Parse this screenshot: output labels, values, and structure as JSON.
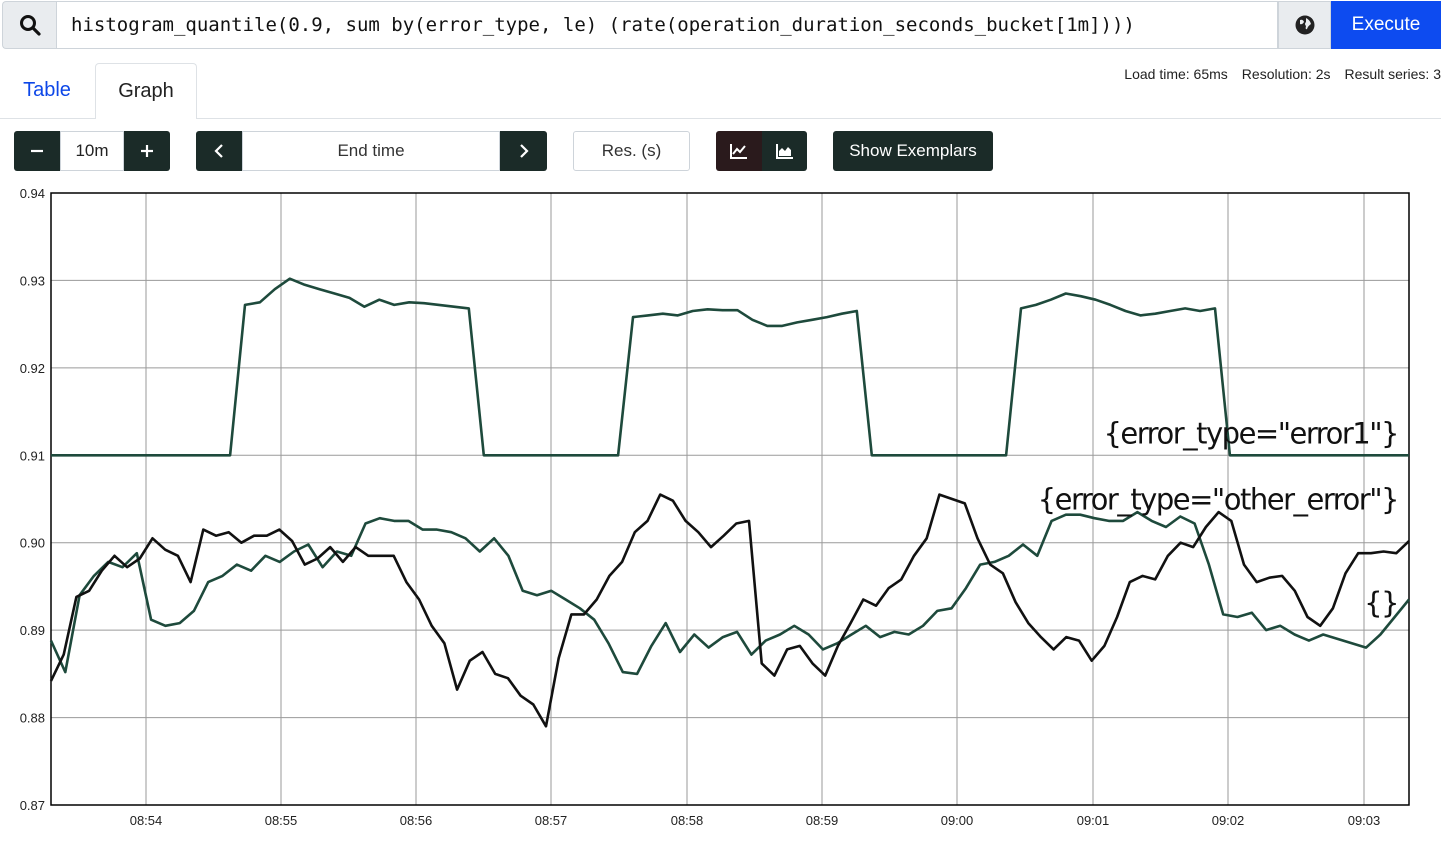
{
  "query": {
    "expression": "histogram_quantile(0.9, sum by(error_type, le) (rate(operation_duration_seconds_bucket[1m])))",
    "execute_label": "Execute"
  },
  "tabs": [
    {
      "label": "Table",
      "active": false
    },
    {
      "label": "Graph",
      "active": true
    }
  ],
  "stats": {
    "load_time": "Load time: 65ms",
    "resolution": "Resolution: 2s",
    "result_series": "Result series: 3"
  },
  "controls": {
    "range_value": "10m",
    "end_time_placeholder": "End time",
    "resolution_placeholder": "Res. (s)",
    "exemplars_label": "Show Exemplars"
  },
  "colors": {
    "accent": "#0d4bf0",
    "dark_button": "#1b2b28",
    "series_dark": "#111111",
    "series_green": "#1e4a3c"
  },
  "chart_data": {
    "type": "line",
    "ylim": [
      0.87,
      0.94
    ],
    "y_ticks": [
      "0.94",
      "0.93",
      "0.92",
      "0.91",
      "0.90",
      "0.89",
      "0.88",
      "0.87"
    ],
    "x_ticks": [
      "08:54",
      "08:55",
      "08:56",
      "08:57",
      "08:58",
      "08:59",
      "09:00",
      "09:01",
      "09:02",
      "09:03"
    ],
    "grid": true,
    "series": [
      {
        "name": "{error_type=\"error1\"}",
        "color": "#1e4a3c",
        "values": [
          [
            0.91,
            0.91
          ],
          [
            0.91,
            0.91
          ],
          [
            0.91,
            0.91
          ],
          [
            0.91,
            0.91
          ],
          [
            0.91,
            0.91
          ],
          [
            0.91,
            0.91
          ],
          [
            0.91,
            0.9272
          ],
          [
            0.9275,
            0.929
          ],
          [
            0.9302,
            0.9295
          ],
          [
            0.929,
            0.9285
          ],
          [
            0.928,
            0.927
          ],
          [
            0.9278,
            0.9272
          ],
          [
            0.9275,
            0.9274
          ],
          [
            0.9272,
            0.927
          ],
          [
            0.9268,
            0.91
          ],
          [
            0.91,
            0.91
          ],
          [
            0.91,
            0.91
          ],
          [
            0.91,
            0.91
          ],
          [
            0.91,
            0.91
          ],
          [
            0.91,
            0.9258
          ],
          [
            0.926,
            0.9262
          ],
          [
            0.926,
            0.9265
          ],
          [
            0.9267,
            0.9266
          ],
          [
            0.9266,
            0.9255
          ],
          [
            0.9248,
            0.9248
          ],
          [
            0.9252,
            0.9255
          ],
          [
            0.9258,
            0.9262
          ],
          [
            0.9265,
            0.91
          ],
          [
            0.91,
            0.91
          ],
          [
            0.91,
            0.91
          ],
          [
            0.91,
            0.91
          ],
          [
            0.91,
            0.91
          ],
          [
            0.91,
            0.9268
          ],
          [
            0.9272,
            0.9278
          ],
          [
            0.9285,
            0.9282
          ],
          [
            0.9278,
            0.9272
          ],
          [
            0.9265,
            0.926
          ],
          [
            0.9262,
            0.9265
          ],
          [
            0.9268,
            0.9265
          ],
          [
            0.9268,
            0.91
          ],
          [
            0.91,
            0.91
          ],
          [
            0.91,
            0.91
          ],
          [
            0.91,
            0.91
          ],
          [
            0.91,
            0.91
          ],
          [
            0.91,
            0.91
          ],
          [
            0.91,
            0.91
          ]
        ]
      },
      {
        "name": "{error_type=\"other_error\"}",
        "color": "#1e4a3c",
        "values": [
          [
            0.8888,
            0.8852
          ],
          [
            0.894,
            0.8962
          ],
          [
            0.8978,
            0.8972
          ],
          [
            0.8988,
            0.8912
          ],
          [
            0.8905,
            0.8908
          ],
          [
            0.8922,
            0.8955
          ],
          [
            0.8962,
            0.8975
          ],
          [
            0.8968,
            0.8985
          ],
          [
            0.8978,
            0.899
          ],
          [
            0.8998,
            0.8972
          ],
          [
            0.899,
            0.8985
          ],
          [
            0.9022,
            0.9028
          ],
          [
            0.9025,
            0.9025
          ],
          [
            0.9015,
            0.9015
          ],
          [
            0.9012,
            0.9005
          ],
          [
            0.899,
            0.9005
          ],
          [
            0.8985,
            0.8945
          ],
          [
            0.894,
            0.8945
          ],
          [
            0.8935,
            0.8925
          ],
          [
            0.8912,
            0.8885
          ],
          [
            0.8852,
            0.885
          ],
          [
            0.8882,
            0.8908
          ],
          [
            0.8875,
            0.8895
          ],
          [
            0.888,
            0.8892
          ],
          [
            0.8898,
            0.8872
          ],
          [
            0.8888,
            0.8895
          ],
          [
            0.8905,
            0.8895
          ],
          [
            0.8878,
            0.8885
          ],
          [
            0.8895,
            0.8905
          ],
          [
            0.8892,
            0.8898
          ],
          [
            0.8895,
            0.8905
          ],
          [
            0.8922,
            0.8925
          ],
          [
            0.8948,
            0.8975
          ],
          [
            0.8978,
            0.8985
          ],
          [
            0.8998,
            0.8985
          ],
          [
            0.9025,
            0.9032
          ],
          [
            0.9032,
            0.9028
          ],
          [
            0.9025,
            0.9025
          ],
          [
            0.9035,
            0.9025
          ],
          [
            0.9018,
            0.903
          ],
          [
            0.9022,
            0.8975
          ],
          [
            0.8918,
            0.8915
          ],
          [
            0.892,
            0.89
          ],
          [
            0.8905,
            0.8895
          ],
          [
            0.8888,
            0.8895
          ],
          [
            0.889,
            0.8885
          ],
          [
            0.888,
            0.8895
          ],
          [
            0.8915,
            0.8935
          ]
        ]
      },
      {
        "name": "{}",
        "color": "#111111",
        "values": [
          [
            0.8842,
            0.8872
          ],
          [
            0.8938,
            0.8945
          ],
          [
            0.8968,
            0.8985
          ],
          [
            0.8972,
            0.8982
          ],
          [
            0.9005,
            0.8992
          ],
          [
            0.8985,
            0.8955
          ],
          [
            0.9015,
            0.9008
          ],
          [
            0.9012,
            0.9
          ],
          [
            0.9008,
            0.9008
          ],
          [
            0.9015,
            0.9002
          ],
          [
            0.8975,
            0.8982
          ],
          [
            0.8995,
            0.8978
          ],
          [
            0.8995,
            0.8985
          ],
          [
            0.8985,
            0.8985
          ],
          [
            0.8955,
            0.8935
          ],
          [
            0.8905,
            0.8885
          ],
          [
            0.8832,
            0.8865
          ],
          [
            0.8875,
            0.885
          ],
          [
            0.8845,
            0.8825
          ],
          [
            0.8815,
            0.879
          ],
          [
            0.8868,
            0.8918
          ],
          [
            0.8918,
            0.8935
          ],
          [
            0.8962,
            0.8978
          ],
          [
            0.9012,
            0.9025
          ],
          [
            0.9055,
            0.9048
          ],
          [
            0.9025,
            0.9012
          ],
          [
            0.8995,
            0.9008
          ],
          [
            0.9022,
            0.9025
          ],
          [
            0.8862,
            0.8848
          ],
          [
            0.8878,
            0.8882
          ],
          [
            0.8862,
            0.8848
          ],
          [
            0.8882,
            0.8908
          ],
          [
            0.8935,
            0.8928
          ],
          [
            0.8948,
            0.8958
          ],
          [
            0.8985,
            0.9005
          ],
          [
            0.9055,
            0.905
          ],
          [
            0.9045,
            0.9005
          ],
          [
            0.8975,
            0.8965
          ],
          [
            0.8932,
            0.8908
          ],
          [
            0.8892,
            0.8878
          ],
          [
            0.8892,
            0.8888
          ],
          [
            0.8865,
            0.8882
          ],
          [
            0.8915,
            0.8955
          ],
          [
            0.8962,
            0.8958
          ],
          [
            0.8985,
            0.9
          ],
          [
            0.8995,
            0.9018
          ],
          [
            0.9035,
            0.9025
          ],
          [
            0.8975,
            0.8955
          ],
          [
            0.896,
            0.8962
          ],
          [
            0.8945,
            0.8915
          ],
          [
            0.8905,
            0.8925
          ],
          [
            0.8965,
            0.8988
          ],
          [
            0.8988,
            0.899
          ],
          [
            0.8988,
            0.9002
          ]
        ]
      }
    ]
  }
}
